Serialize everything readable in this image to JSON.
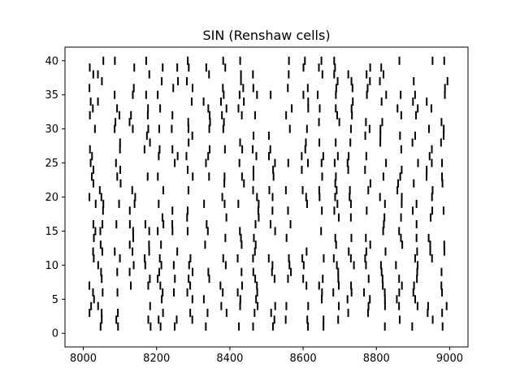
{
  "chart_data": {
    "type": "raster",
    "title": "SIN (Renshaw cells)",
    "xlabel": "",
    "ylabel": "",
    "xlim": [
      7950,
      9050
    ],
    "ylim": [
      -2,
      42
    ],
    "xticks": [
      8000,
      8200,
      8400,
      8600,
      8800,
      9000
    ],
    "yticks": [
      0,
      5,
      10,
      15,
      20,
      25,
      30,
      35,
      40
    ],
    "grid": false,
    "legend": "none",
    "color": "#000000",
    "burst_times": [
      8025,
      8046,
      8093,
      8135,
      8175,
      8212,
      8250,
      8290,
      8337,
      8383,
      8430,
      8470,
      8515,
      8560,
      8605,
      8648,
      8690,
      8730,
      8775,
      8818,
      8862,
      8905,
      8945,
      8985
    ],
    "neurons": 40
  }
}
